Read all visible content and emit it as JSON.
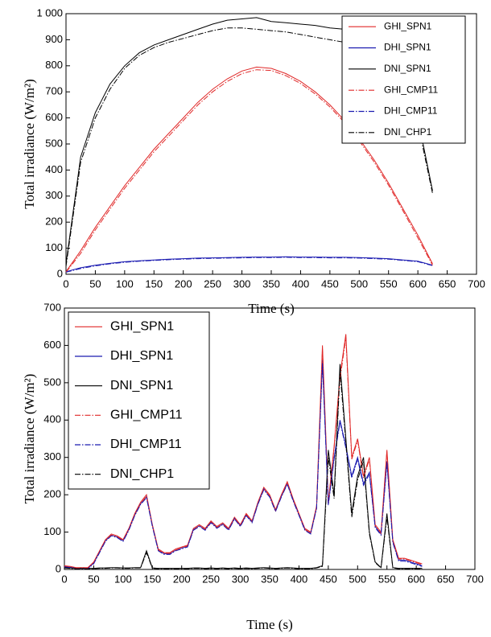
{
  "chart_data": [
    {
      "type": "line",
      "x_label": "Time (s)",
      "y_label": "Total irradiance (W/m²)",
      "xlim": [
        0,
        700
      ],
      "xticks": [
        0,
        50,
        100,
        150,
        200,
        250,
        300,
        350,
        400,
        450,
        500,
        550,
        600,
        650,
        700
      ],
      "ylim": [
        0,
        1000
      ],
      "yticks": [
        0,
        100,
        200,
        300,
        400,
        500,
        600,
        700,
        800,
        900,
        {
          "value": 1000,
          "label": "1 000"
        }
      ],
      "legend": "upper right",
      "x": [
        0,
        25,
        50,
        75,
        100,
        125,
        150,
        175,
        200,
        225,
        250,
        275,
        300,
        325,
        350,
        375,
        400,
        425,
        450,
        475,
        500,
        525,
        550,
        575,
        600,
        625
      ],
      "series": [
        {
          "name": "GHI_SPN1",
          "color": "#e02828",
          "line_style": "solid",
          "values": [
            10,
            90,
            180,
            260,
            340,
            410,
            480,
            540,
            600,
            660,
            710,
            750,
            780,
            795,
            790,
            770,
            740,
            700,
            650,
            590,
            520,
            440,
            350,
            250,
            150,
            40
          ]
        },
        {
          "name": "DHI_SPN1",
          "color": "#1a1ab0",
          "line_style": "solid",
          "values": [
            10,
            25,
            35,
            42,
            48,
            52,
            55,
            58,
            60,
            62,
            63,
            64,
            65,
            66,
            66,
            67,
            66,
            66,
            65,
            65,
            64,
            62,
            60,
            55,
            50,
            35
          ]
        },
        {
          "name": "DNI_SPN1",
          "color": "#000000",
          "line_style": "solid",
          "values": [
            40,
            450,
            620,
            730,
            800,
            850,
            880,
            900,
            920,
            940,
            960,
            975,
            980,
            985,
            970,
            965,
            960,
            955,
            945,
            940,
            930,
            920,
            900,
            870,
            600,
            320
          ]
        },
        {
          "name": "GHI_CMP11",
          "color": "#e02828",
          "line_style": "dashdot",
          "values": [
            8,
            80,
            170,
            250,
            330,
            400,
            470,
            530,
            590,
            650,
            700,
            740,
            770,
            785,
            782,
            762,
            732,
            692,
            642,
            582,
            512,
            432,
            342,
            242,
            140,
            35
          ]
        },
        {
          "name": "DHI_CMP11",
          "color": "#1a1ab0",
          "line_style": "dashdot",
          "values": [
            8,
            22,
            32,
            40,
            46,
            50,
            53,
            56,
            58,
            60,
            61,
            62,
            63,
            64,
            64,
            65,
            64,
            64,
            63,
            63,
            62,
            60,
            58,
            53,
            48,
            33
          ]
        },
        {
          "name": "DNI_CHP1",
          "color": "#000000",
          "line_style": "dashdot",
          "values": [
            30,
            430,
            600,
            710,
            790,
            840,
            870,
            890,
            905,
            920,
            935,
            945,
            945,
            940,
            935,
            930,
            920,
            910,
            900,
            890,
            880,
            870,
            855,
            830,
            580,
            310
          ]
        }
      ]
    },
    {
      "type": "line",
      "x_label": "Time (s)",
      "y_label": "Total irradiance (W/m²)",
      "xlim": [
        0,
        700
      ],
      "xticks": [
        0,
        50,
        100,
        150,
        200,
        250,
        300,
        350,
        400,
        450,
        500,
        550,
        600,
        650,
        700
      ],
      "ylim": [
        0,
        700
      ],
      "yticks": [
        0,
        100,
        200,
        300,
        400,
        500,
        600,
        700
      ],
      "legend": "upper left",
      "x": [
        0,
        10,
        20,
        30,
        40,
        50,
        60,
        70,
        80,
        90,
        100,
        110,
        120,
        130,
        140,
        150,
        160,
        170,
        180,
        190,
        200,
        210,
        220,
        230,
        240,
        250,
        260,
        270,
        280,
        290,
        300,
        310,
        320,
        330,
        340,
        350,
        360,
        370,
        380,
        390,
        400,
        410,
        420,
        430,
        440,
        450,
        460,
        470,
        480,
        490,
        500,
        510,
        520,
        530,
        540,
        550,
        560,
        570,
        580,
        590,
        600,
        610
      ],
      "series": [
        {
          "name": "GHI_SPN1",
          "color": "#e02828",
          "line_style": "solid",
          "values": [
            10,
            8,
            5,
            5,
            5,
            20,
            50,
            80,
            95,
            90,
            80,
            110,
            150,
            180,
            200,
            120,
            55,
            45,
            45,
            55,
            60,
            65,
            110,
            120,
            110,
            130,
            115,
            125,
            110,
            140,
            120,
            150,
            130,
            180,
            220,
            200,
            160,
            200,
            235,
            190,
            150,
            110,
            100,
            170,
            600,
            180,
            330,
            520,
            630,
            300,
            350,
            250,
            300,
            120,
            100,
            320,
            80,
            30,
            30,
            25,
            20,
            15
          ]
        },
        {
          "name": "DHI_SPN1",
          "color": "#1a1ab0",
          "line_style": "solid",
          "values": [
            8,
            6,
            3,
            3,
            3,
            17,
            47,
            77,
            92,
            87,
            77,
            107,
            146,
            176,
            195,
            117,
            52,
            42,
            42,
            52,
            57,
            62,
            107,
            117,
            107,
            127,
            112,
            122,
            107,
            137,
            117,
            146,
            127,
            176,
            216,
            196,
            157,
            196,
            230,
            186,
            147,
            107,
            97,
            165,
            560,
            175,
            300,
            400,
            330,
            250,
            300,
            230,
            260,
            115,
            95,
            290,
            75,
            25,
            25,
            20,
            15,
            10
          ]
        },
        {
          "name": "DNI_SPN1",
          "color": "#000000",
          "line_style": "solid",
          "values": [
            5,
            4,
            3,
            3,
            3,
            3,
            4,
            4,
            5,
            5,
            4,
            4,
            5,
            5,
            50,
            4,
            3,
            3,
            3,
            3,
            3,
            3,
            4,
            4,
            3,
            4,
            3,
            4,
            3,
            4,
            3,
            4,
            3,
            4,
            5,
            4,
            3,
            4,
            5,
            4,
            3,
            3,
            3,
            5,
            10,
            320,
            200,
            550,
            350,
            150,
            250,
            300,
            100,
            20,
            5,
            150,
            5,
            3,
            3,
            3,
            3,
            3
          ]
        },
        {
          "name": "GHI_CMP11",
          "color": "#e02828",
          "line_style": "dashdot",
          "values": [
            9,
            7,
            4,
            4,
            4,
            18,
            47,
            77,
            92,
            88,
            78,
            107,
            146,
            176,
            196,
            117,
            52,
            43,
            43,
            52,
            58,
            63,
            106,
            117,
            107,
            127,
            112,
            122,
            107,
            137,
            117,
            147,
            127,
            176,
            216,
            197,
            157,
            197,
            231,
            187,
            147,
            107,
            97,
            166,
            590,
            176,
            325,
            510,
            620,
            295,
            345,
            245,
            295,
            117,
            97,
            315,
            77,
            28,
            28,
            23,
            18,
            13
          ]
        },
        {
          "name": "DHI_CMP11",
          "color": "#1a1ab0",
          "line_style": "dashdot",
          "values": [
            7,
            5,
            2,
            2,
            2,
            15,
            45,
            75,
            90,
            85,
            75,
            105,
            144,
            174,
            192,
            115,
            50,
            40,
            40,
            50,
            55,
            60,
            105,
            115,
            105,
            125,
            110,
            120,
            105,
            135,
            115,
            144,
            125,
            174,
            213,
            194,
            155,
            194,
            228,
            184,
            145,
            105,
            95,
            163,
            550,
            172,
            295,
            395,
            325,
            245,
            295,
            225,
            255,
            112,
            92,
            285,
            72,
            22,
            22,
            18,
            13,
            8
          ]
        },
        {
          "name": "DNI_CHP1",
          "color": "#000000",
          "line_style": "dashdot",
          "values": [
            4,
            3,
            2,
            2,
            2,
            2,
            3,
            3,
            4,
            4,
            3,
            3,
            4,
            4,
            45,
            3,
            2,
            2,
            2,
            2,
            2,
            2,
            3,
            3,
            2,
            3,
            2,
            3,
            2,
            3,
            2,
            3,
            2,
            3,
            4,
            3,
            2,
            3,
            4,
            3,
            2,
            2,
            2,
            4,
            8,
            300,
            190,
            530,
            340,
            140,
            240,
            290,
            95,
            18,
            4,
            140,
            4,
            2,
            2,
            2,
            2,
            2
          ]
        }
      ]
    }
  ]
}
